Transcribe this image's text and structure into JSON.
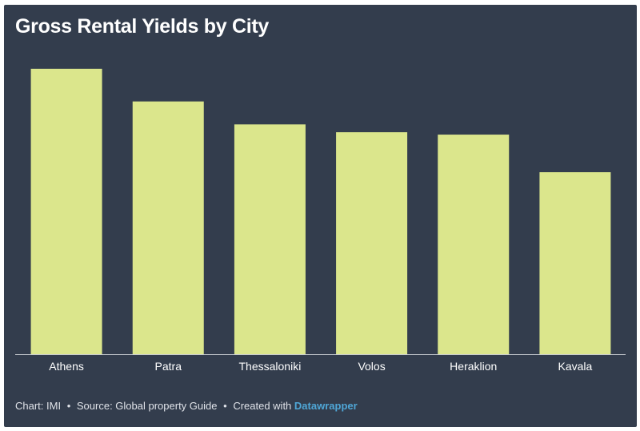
{
  "title": "Gross Rental Yields by City",
  "footer": {
    "chart_by": "Chart: IMI",
    "source": "Source: Global property Guide",
    "created_with": "Created with",
    "tool_link": "Datawrapper",
    "separator": "•"
  },
  "colors": {
    "background": "#333d4d",
    "bar": "#dbe68c",
    "baseline": "#c8ccd2",
    "link": "#4fa6d6"
  },
  "chart_data": {
    "type": "bar",
    "title": "Gross Rental Yields by City",
    "xlabel": "",
    "ylabel": "",
    "grid": false,
    "categories": [
      "Athens",
      "Patra",
      "Thessaloniki",
      "Volos",
      "Heraklion",
      "Kavala"
    ],
    "values": [
      5.5,
      4.87,
      4.43,
      4.28,
      4.23,
      3.51
    ],
    "ylim": [
      0,
      5.5
    ]
  }
}
